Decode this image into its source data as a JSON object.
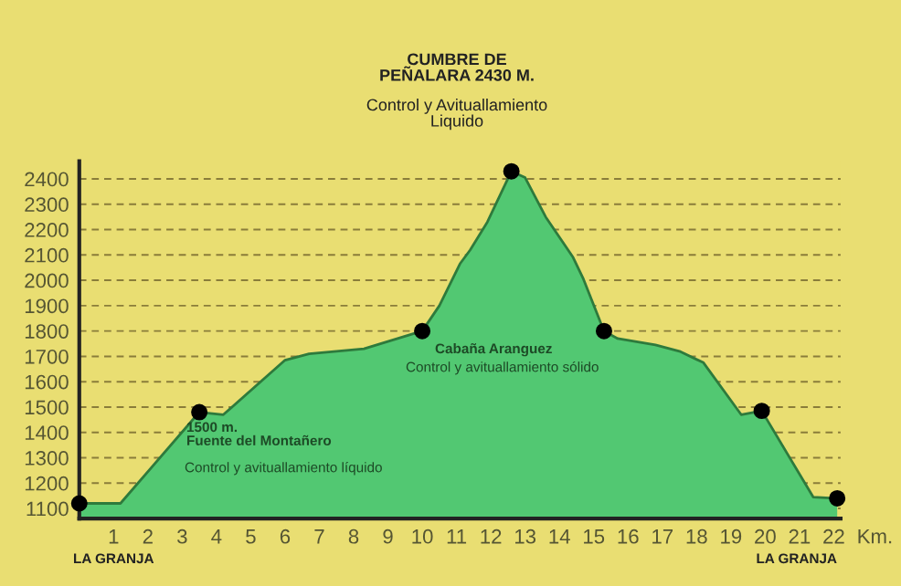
{
  "chart_data": {
    "type": "area",
    "xlabel": "Km.",
    "series": [
      {
        "color": "#52c872",
        "x": [
          0,
          1.2,
          3.5,
          4.2,
          6,
          6.7,
          8.3,
          10,
          10.5,
          11.1,
          11.4,
          11.9,
          12.6,
          13,
          13.6,
          14.4,
          14.7,
          15.3,
          15.7,
          16.8,
          17.5,
          18.2,
          19.3,
          19.9,
          21.4,
          22.1
        ],
        "values": [
          1120,
          1120,
          1480,
          1470,
          1685,
          1710,
          1730,
          1800,
          1900,
          2065,
          2120,
          2230,
          2430,
          2405,
          2250,
          2090,
          2005,
          1800,
          1770,
          1745,
          1720,
          1675,
          1470,
          1485,
          1145,
          1140
        ]
      },
      {
        "type": "scatter",
        "color": "#000000",
        "marker": "circle",
        "x": [
          0,
          3.5,
          10,
          12.6,
          15.3,
          19.9,
          22.1
        ],
        "values": [
          1120,
          1480,
          1800,
          2430,
          1800,
          1485,
          1140
        ]
      }
    ],
    "xlim": [
      0,
      22.2
    ],
    "ylim": [
      1060,
      2470
    ],
    "xticks": [
      1,
      2,
      3,
      4,
      5,
      6,
      7,
      8,
      9,
      10,
      11,
      12,
      13,
      14,
      15,
      16,
      17,
      18,
      19,
      20,
      21,
      22
    ],
    "yticks": [
      1100,
      1200,
      1300,
      1400,
      1500,
      1600,
      1700,
      1800,
      1900,
      2000,
      2100,
      2200,
      2300,
      2400
    ],
    "grid": "y",
    "legend": false,
    "annotations": [
      "CUMBRE DE\nPEÑALARA 2430 M.",
      "Control y Avituallamiento\nLiquido",
      "Cabaña Aranguez",
      "Control y avituallamiento sólido",
      "1500 m.\nFuente del Montañero",
      "Control y avituallamiento líquido",
      "LA GRANJA",
      "LA GRANJA"
    ]
  }
}
